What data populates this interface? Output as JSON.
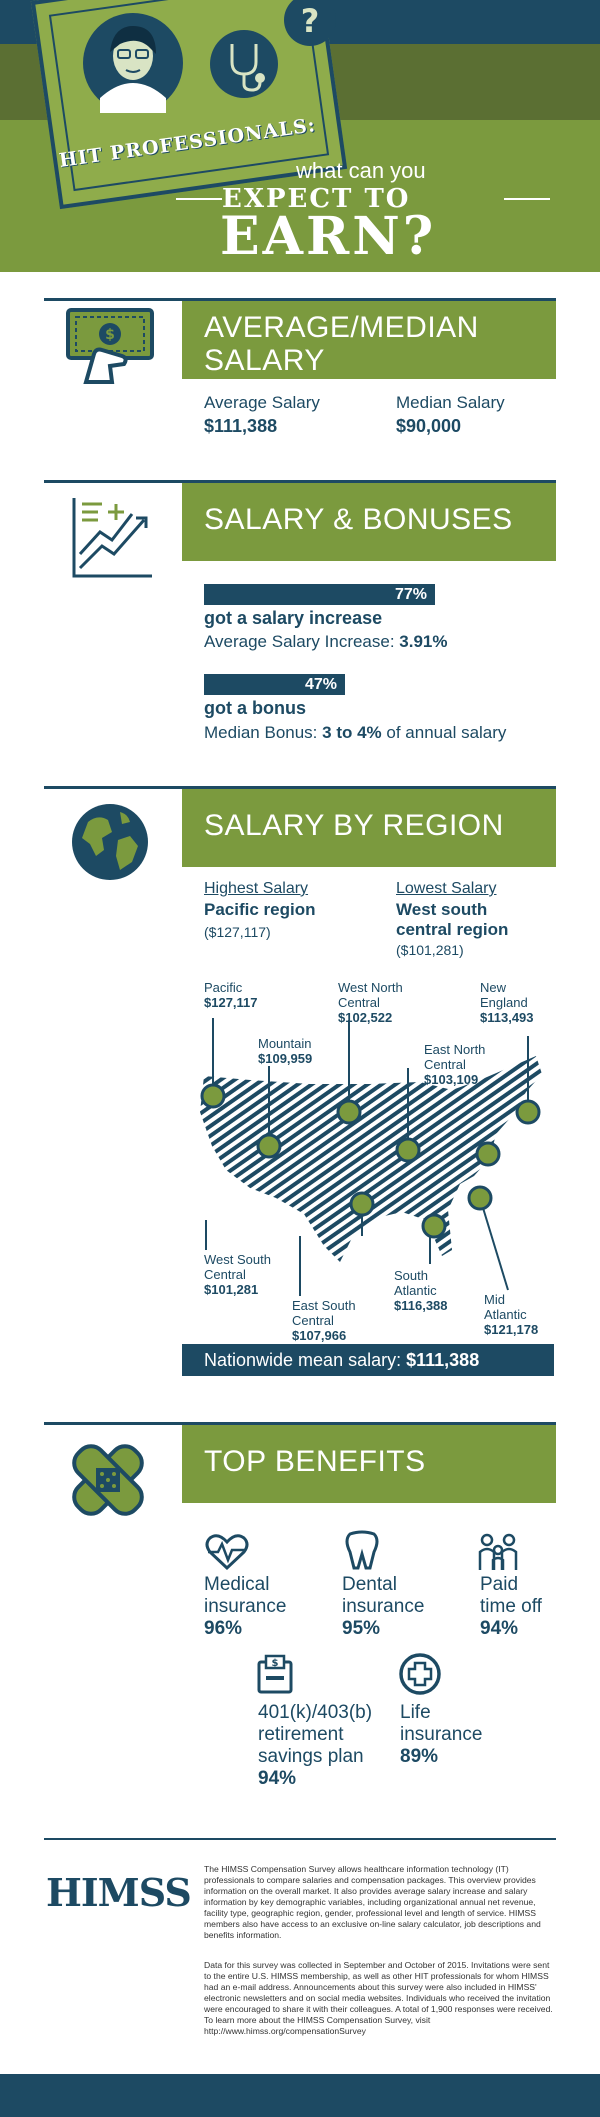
{
  "header": {
    "kicker": "HIT PROFESSIONALS:",
    "question": "what can you",
    "headline_1": "EXPECT TO",
    "headline_2": "EARN?"
  },
  "colors": {
    "navy": "#1d4a63",
    "green": "#7b9a3e",
    "dark_green": "#5b6f33"
  },
  "salary": {
    "title_1": "AVERAGE/MEDIAN",
    "title_2": "SALARY",
    "icon": "money-hand-icon",
    "average_label": "Average Salary",
    "average_value": "$111,388",
    "median_label": "Median Salary",
    "median_value": "$90,000"
  },
  "bonuses": {
    "title": "SALARY & BONUSES",
    "icon": "growth-chart-icon",
    "increase": {
      "percent": 77,
      "percent_label": "77%",
      "caption": "got a salary increase",
      "detail_prefix": "Average Salary Increase: ",
      "detail_value": "3.91%"
    },
    "bonus": {
      "percent": 47,
      "percent_label": "47%",
      "caption": "got a bonus",
      "detail_prefix": "Median Bonus: ",
      "detail_value": "3 to 4%",
      "detail_suffix": " of annual salary"
    }
  },
  "region": {
    "title": "SALARY BY REGION",
    "icon": "globe-icon",
    "highest_head": "Highest Salary",
    "highest_name_1": "Pacific region",
    "highest_amount": "($127,117)",
    "lowest_head": "Lowest Salary",
    "lowest_name_1": "West south",
    "lowest_name_2": "central region",
    "lowest_amount": "($101,281)",
    "map": [
      {
        "name": "Pacific",
        "amount": "$127,117"
      },
      {
        "name": "Mountain",
        "amount": "$109,959"
      },
      {
        "name_1": "West North",
        "name_2": "Central",
        "amount": "$102,522"
      },
      {
        "name_1": "East North",
        "name_2": "Central",
        "amount": "$103,109"
      },
      {
        "name_1": "New",
        "name_2": "England",
        "amount": "$113,493"
      },
      {
        "name_1": "West South",
        "name_2": "Central",
        "amount": "$101,281"
      },
      {
        "name_1": "East South",
        "name_2": "Central",
        "amount": "$107,966"
      },
      {
        "name_1": "South",
        "name_2": "Atlantic",
        "amount": "$116,388"
      },
      {
        "name_1": "Mid",
        "name_2": "Atlantic",
        "amount": "$121,178"
      }
    ],
    "nationwide_prefix": "Nationwide mean salary: ",
    "nationwide_value": "$111,388"
  },
  "benefits": {
    "title": "TOP BENEFITS",
    "icon": "bandage-icon",
    "items": [
      {
        "line_1": "Medical",
        "line_2": "insurance",
        "pct": "96%",
        "icon": "heart-pulse-icon"
      },
      {
        "line_1": "Dental",
        "line_2": "insurance",
        "pct": "95%",
        "icon": "tooth-icon"
      },
      {
        "line_1": "Paid",
        "line_2": "time off",
        "pct": "94%",
        "icon": "family-icon"
      },
      {
        "line_1": "401(k)/403(b)",
        "line_2": "retirement",
        "line_3": "savings plan",
        "pct": "94%",
        "icon": "piggy-bank-icon"
      },
      {
        "line_1": "Life",
        "line_2": "insurance",
        "pct": "89%",
        "icon": "medical-cross-icon"
      }
    ]
  },
  "footer": {
    "logo": "HIMSS",
    "para_1": "The HIMSS Compensation Survey allows healthcare information technology (IT) professionals to compare salaries and compensation packages. This overview provides information on the overall market. It also provides average salary increase and salary information by key demographic variables, including organizational annual net revenue, facility type, geographic region, gender, professional level and length of service. HIMSS members also have access to an exclusive on-line salary calculator, job descriptions and benefits information.",
    "para_2": "Data for this survey was collected in September and October of 2015. Invitations were sent to the entire U.S. HIMSS membership, as well as other HIT professionals for whom HIMSS had an e-mail address. Announcements about this survey were also included in HIMSS' electronic newsletters and on social media websites. Individuals who received the invitation were encouraged to share it with their colleagues. A total of 1,900 responses were received. To learn more about the HIMSS Compensation Survey, visit http://www.himss.org/compensationSurvey"
  }
}
